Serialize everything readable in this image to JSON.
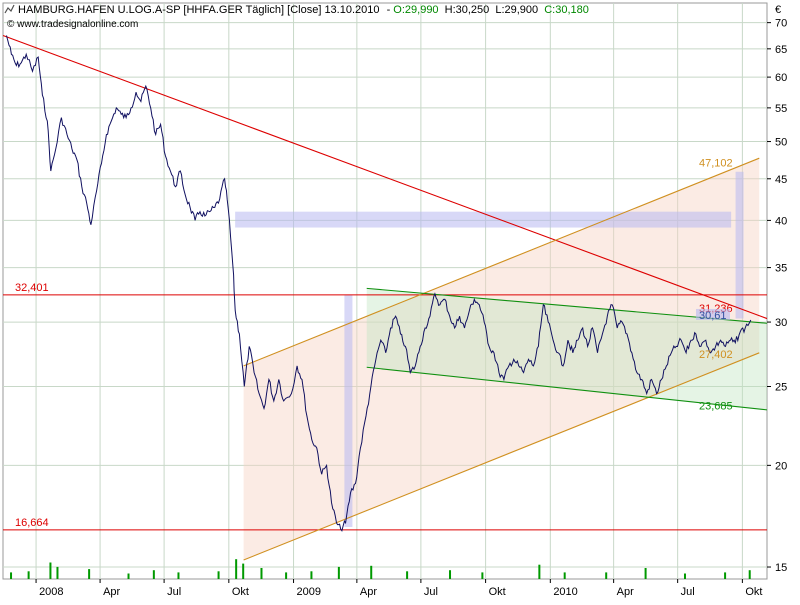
{
  "header": {
    "title": "HAMBURG.HAFEN U.LOG.A-SP [HHFA.GER  Täglich] [Close] 13.10.2010",
    "open": "O:29,990",
    "high": "H:30,250",
    "low": "L:29,900",
    "close": "C:30,180",
    "watermark": "© www.tradesignalonline.com",
    "currency": "€"
  },
  "colors": {
    "price_line": "#101060",
    "resistance_line": "#dd0000",
    "channel_line": "#d09020",
    "triangle_line": "#109010",
    "header_green": "#008800",
    "grid": "#c8d8c8",
    "volume": "#009900"
  },
  "chart_data": {
    "type": "line",
    "title": "HAMBURG.HAFEN U.LOG.A-SP [HHFA.GER  Täglich] [Close] 13.10.2010",
    "scale": "log",
    "ylim": [
      14.5,
      74
    ],
    "y_ticks": [
      15,
      20,
      25,
      30,
      35,
      40,
      45,
      50,
      55,
      60,
      65,
      70
    ],
    "x_range": [
      "2007-11-15",
      "2010-11-05"
    ],
    "x_ticks": [
      {
        "label": "2008",
        "date": "2008-01-01"
      },
      {
        "label": "Apr",
        "date": "2008-04-01"
      },
      {
        "label": "Jul",
        "date": "2008-07-01"
      },
      {
        "label": "Okt",
        "date": "2008-10-01"
      },
      {
        "label": "2009",
        "date": "2009-01-01"
      },
      {
        "label": "Apr",
        "date": "2009-04-01"
      },
      {
        "label": "Jul",
        "date": "2009-07-01"
      },
      {
        "label": "Okt",
        "date": "2009-10-01"
      },
      {
        "label": "2010",
        "date": "2010-01-01"
      },
      {
        "label": "Apr",
        "date": "2010-04-01"
      },
      {
        "label": "Jul",
        "date": "2010-07-01"
      },
      {
        "label": "Okt",
        "date": "2010-10-01"
      }
    ],
    "grid": true,
    "series": [
      {
        "values": [
          [
            "2007-11-20",
            67.5
          ],
          [
            "2007-11-27",
            64.0
          ],
          [
            "2007-12-04",
            62.0
          ],
          [
            "2007-12-11",
            62.5
          ],
          [
            "2007-12-18",
            64.0
          ],
          [
            "2007-12-27",
            61.0
          ],
          [
            "2008-01-04",
            63.5
          ],
          [
            "2008-01-10",
            57.0
          ],
          [
            "2008-01-17",
            53.0
          ],
          [
            "2008-01-22",
            46.0
          ],
          [
            "2008-01-29",
            49.0
          ],
          [
            "2008-02-06",
            53.5
          ],
          [
            "2008-02-14",
            51.0
          ],
          [
            "2008-02-21",
            49.0
          ],
          [
            "2008-02-28",
            47.5
          ],
          [
            "2008-03-06",
            44.0
          ],
          [
            "2008-03-13",
            42.0
          ],
          [
            "2008-03-19",
            39.5
          ],
          [
            "2008-03-27",
            43.5
          ],
          [
            "2008-04-03",
            47.0
          ],
          [
            "2008-04-10",
            51.0
          ],
          [
            "2008-04-17",
            53.0
          ],
          [
            "2008-04-24",
            55.0
          ],
          [
            "2008-05-01",
            54.0
          ],
          [
            "2008-05-08",
            53.5
          ],
          [
            "2008-05-15",
            55.0
          ],
          [
            "2008-05-22",
            57.5
          ],
          [
            "2008-05-29",
            56.0
          ],
          [
            "2008-06-05",
            58.5
          ],
          [
            "2008-06-12",
            55.0
          ],
          [
            "2008-06-19",
            51.0
          ],
          [
            "2008-06-26",
            52.5
          ],
          [
            "2008-07-03",
            48.0
          ],
          [
            "2008-07-10",
            46.0
          ],
          [
            "2008-07-17",
            44.0
          ],
          [
            "2008-07-24",
            46.0
          ],
          [
            "2008-07-31",
            43.0
          ],
          [
            "2008-08-07",
            41.5
          ],
          [
            "2008-08-14",
            40.0
          ],
          [
            "2008-08-21",
            41.0
          ],
          [
            "2008-08-28",
            40.5
          ],
          [
            "2008-09-04",
            41.0
          ],
          [
            "2008-09-11",
            41.5
          ],
          [
            "2008-09-18",
            42.5
          ],
          [
            "2008-09-25",
            45.0
          ],
          [
            "2008-09-30",
            41.5
          ],
          [
            "2008-10-07",
            35.0
          ],
          [
            "2008-10-10",
            31.0
          ],
          [
            "2008-10-16",
            29.0
          ],
          [
            "2008-10-23",
            25.0
          ],
          [
            "2008-10-30",
            28.0
          ],
          [
            "2008-11-06",
            26.0
          ],
          [
            "2008-11-13",
            24.5
          ],
          [
            "2008-11-20",
            23.5
          ],
          [
            "2008-11-27",
            25.5
          ],
          [
            "2008-12-04",
            24.0
          ],
          [
            "2008-12-11",
            25.5
          ],
          [
            "2008-12-18",
            24.0
          ],
          [
            "2008-12-29",
            24.5
          ],
          [
            "2009-01-06",
            26.5
          ],
          [
            "2009-01-13",
            25.5
          ],
          [
            "2009-01-20",
            23.0
          ],
          [
            "2009-01-27",
            21.5
          ],
          [
            "2009-02-03",
            21.0
          ],
          [
            "2009-02-10",
            19.5
          ],
          [
            "2009-02-17",
            20.0
          ],
          [
            "2009-02-24",
            18.0
          ],
          [
            "2009-03-03",
            17.0
          ],
          [
            "2009-03-09",
            16.7
          ],
          [
            "2009-03-16",
            17.0
          ],
          [
            "2009-03-23",
            18.5
          ],
          [
            "2009-03-30",
            19.0
          ],
          [
            "2009-04-06",
            21.0
          ],
          [
            "2009-04-14",
            23.0
          ],
          [
            "2009-04-21",
            25.0
          ],
          [
            "2009-04-28",
            27.0
          ],
          [
            "2009-05-05",
            28.5
          ],
          [
            "2009-05-12",
            27.5
          ],
          [
            "2009-05-19",
            29.5
          ],
          [
            "2009-05-26",
            30.5
          ],
          [
            "2009-06-02",
            29.0
          ],
          [
            "2009-06-09",
            28.0
          ],
          [
            "2009-06-16",
            26.0
          ],
          [
            "2009-06-23",
            26.5
          ],
          [
            "2009-06-30",
            28.0
          ],
          [
            "2009-07-07",
            29.5
          ],
          [
            "2009-07-14",
            30.5
          ],
          [
            "2009-07-21",
            32.5
          ],
          [
            "2009-07-28",
            31.5
          ],
          [
            "2009-08-04",
            32.0
          ],
          [
            "2009-08-11",
            30.5
          ],
          [
            "2009-08-18",
            29.5
          ],
          [
            "2009-08-25",
            30.5
          ],
          [
            "2009-09-01",
            29.5
          ],
          [
            "2009-09-08",
            31.0
          ],
          [
            "2009-09-15",
            32.0
          ],
          [
            "2009-09-22",
            31.5
          ],
          [
            "2009-09-29",
            30.0
          ],
          [
            "2009-10-06",
            28.0
          ],
          [
            "2009-10-13",
            27.5
          ],
          [
            "2009-10-20",
            26.0
          ],
          [
            "2009-10-27",
            25.5
          ],
          [
            "2009-11-03",
            26.5
          ],
          [
            "2009-11-10",
            27.0
          ],
          [
            "2009-11-17",
            26.5
          ],
          [
            "2009-11-24",
            26.0
          ],
          [
            "2009-12-01",
            27.0
          ],
          [
            "2009-12-08",
            26.5
          ],
          [
            "2009-12-15",
            28.0
          ],
          [
            "2009-12-22",
            31.5
          ],
          [
            "2009-12-29",
            30.0
          ],
          [
            "2010-01-05",
            28.5
          ],
          [
            "2010-01-12",
            27.5
          ],
          [
            "2010-01-19",
            26.5
          ],
          [
            "2010-01-26",
            28.5
          ],
          [
            "2010-02-02",
            27.5
          ],
          [
            "2010-02-09",
            28.5
          ],
          [
            "2010-02-16",
            29.5
          ],
          [
            "2010-02-23",
            28.0
          ],
          [
            "2010-03-02",
            29.5
          ],
          [
            "2010-03-09",
            27.5
          ],
          [
            "2010-03-16",
            29.0
          ],
          [
            "2010-03-23",
            30.5
          ],
          [
            "2010-03-30",
            31.5
          ],
          [
            "2010-04-06",
            29.5
          ],
          [
            "2010-04-13",
            30.0
          ],
          [
            "2010-04-20",
            29.0
          ],
          [
            "2010-04-27",
            27.5
          ],
          [
            "2010-05-04",
            26.0
          ],
          [
            "2010-05-11",
            25.5
          ],
          [
            "2010-05-18",
            24.5
          ],
          [
            "2010-05-25",
            25.5
          ],
          [
            "2010-06-01",
            24.5
          ],
          [
            "2010-06-08",
            25.5
          ],
          [
            "2010-06-15",
            26.5
          ],
          [
            "2010-06-22",
            27.5
          ],
          [
            "2010-06-29",
            28.0
          ],
          [
            "2010-07-06",
            28.5
          ],
          [
            "2010-07-13",
            27.5
          ],
          [
            "2010-07-20",
            28.5
          ],
          [
            "2010-07-27",
            29.0
          ],
          [
            "2010-08-03",
            28.0
          ],
          [
            "2010-08-10",
            28.5
          ],
          [
            "2010-08-17",
            27.5
          ],
          [
            "2010-08-24",
            28.0
          ],
          [
            "2010-08-31",
            28.5
          ],
          [
            "2010-09-07",
            28.0
          ],
          [
            "2010-09-14",
            28.5
          ],
          [
            "2010-09-21",
            28.3
          ],
          [
            "2010-09-28",
            29.2
          ],
          [
            "2010-10-05",
            29.5
          ],
          [
            "2010-10-13",
            30.18
          ]
        ]
      }
    ],
    "horizontal_lines": [
      {
        "label": "32,401",
        "value": 32.401
      },
      {
        "label": "16,664",
        "value": 16.664
      }
    ],
    "trendlines": [
      {
        "kind": "resistance",
        "start": [
          "2007-11-15",
          67.5
        ],
        "end": [
          "2010-11-05",
          30.3
        ]
      },
      {
        "kind": "channel_upper",
        "start": [
          "2008-10-22",
          26.5
        ],
        "end": [
          "2010-10-25",
          47.7
        ]
      },
      {
        "kind": "channel_lower",
        "start": [
          "2008-10-22",
          15.3
        ],
        "end": [
          "2010-10-25",
          27.5
        ]
      },
      {
        "kind": "triangle_upper",
        "start": [
          "2009-04-15",
          33.0
        ],
        "end": [
          "2010-11-05",
          29.9
        ]
      },
      {
        "kind": "triangle_lower",
        "start": [
          "2009-04-15",
          26.4
        ],
        "end": [
          "2010-11-05",
          23.4
        ]
      }
    ],
    "annotations": [
      {
        "label": "47,102",
        "value": 47.102
      },
      {
        "label": "31,236",
        "value": 31.236
      },
      {
        "label": "30,61",
        "value": 30.61
      },
      {
        "label": "27,402",
        "value": 27.402
      },
      {
        "label": "23,685",
        "value": 23.685
      }
    ],
    "target_band": {
      "start": "2008-10-10",
      "end": "2010-09-15",
      "low": 39.2,
      "high": 41.0
    },
    "projections": [
      {
        "date": "2009-03-20",
        "low": 16.8,
        "high": 32.4
      },
      {
        "date": "2010-09-27",
        "low": 30.3,
        "high": 45.9
      }
    ],
    "volume_bars": [
      [
        "2007-11-25",
        0.3
      ],
      [
        "2007-12-20",
        0.35
      ],
      [
        "2008-01-20",
        0.75
      ],
      [
        "2008-01-30",
        0.55
      ],
      [
        "2008-03-15",
        0.45
      ],
      [
        "2008-05-10",
        0.25
      ],
      [
        "2008-06-15",
        0.4
      ],
      [
        "2008-07-20",
        0.3
      ],
      [
        "2008-09-15",
        0.35
      ],
      [
        "2008-10-10",
        0.9
      ],
      [
        "2008-10-20",
        0.7
      ],
      [
        "2008-11-15",
        0.5
      ],
      [
        "2008-12-20",
        0.3
      ],
      [
        "2009-01-25",
        0.35
      ],
      [
        "2009-03-05",
        0.55
      ],
      [
        "2009-04-20",
        0.6
      ],
      [
        "2009-06-10",
        0.35
      ],
      [
        "2009-08-10",
        0.4
      ],
      [
        "2009-09-25",
        0.3
      ],
      [
        "2009-12-15",
        0.65
      ],
      [
        "2010-01-20",
        0.3
      ],
      [
        "2010-03-20",
        0.3
      ],
      [
        "2010-05-15",
        0.5
      ],
      [
        "2010-07-10",
        0.25
      ],
      [
        "2010-09-05",
        0.3
      ],
      [
        "2010-10-10",
        0.4
      ]
    ]
  }
}
